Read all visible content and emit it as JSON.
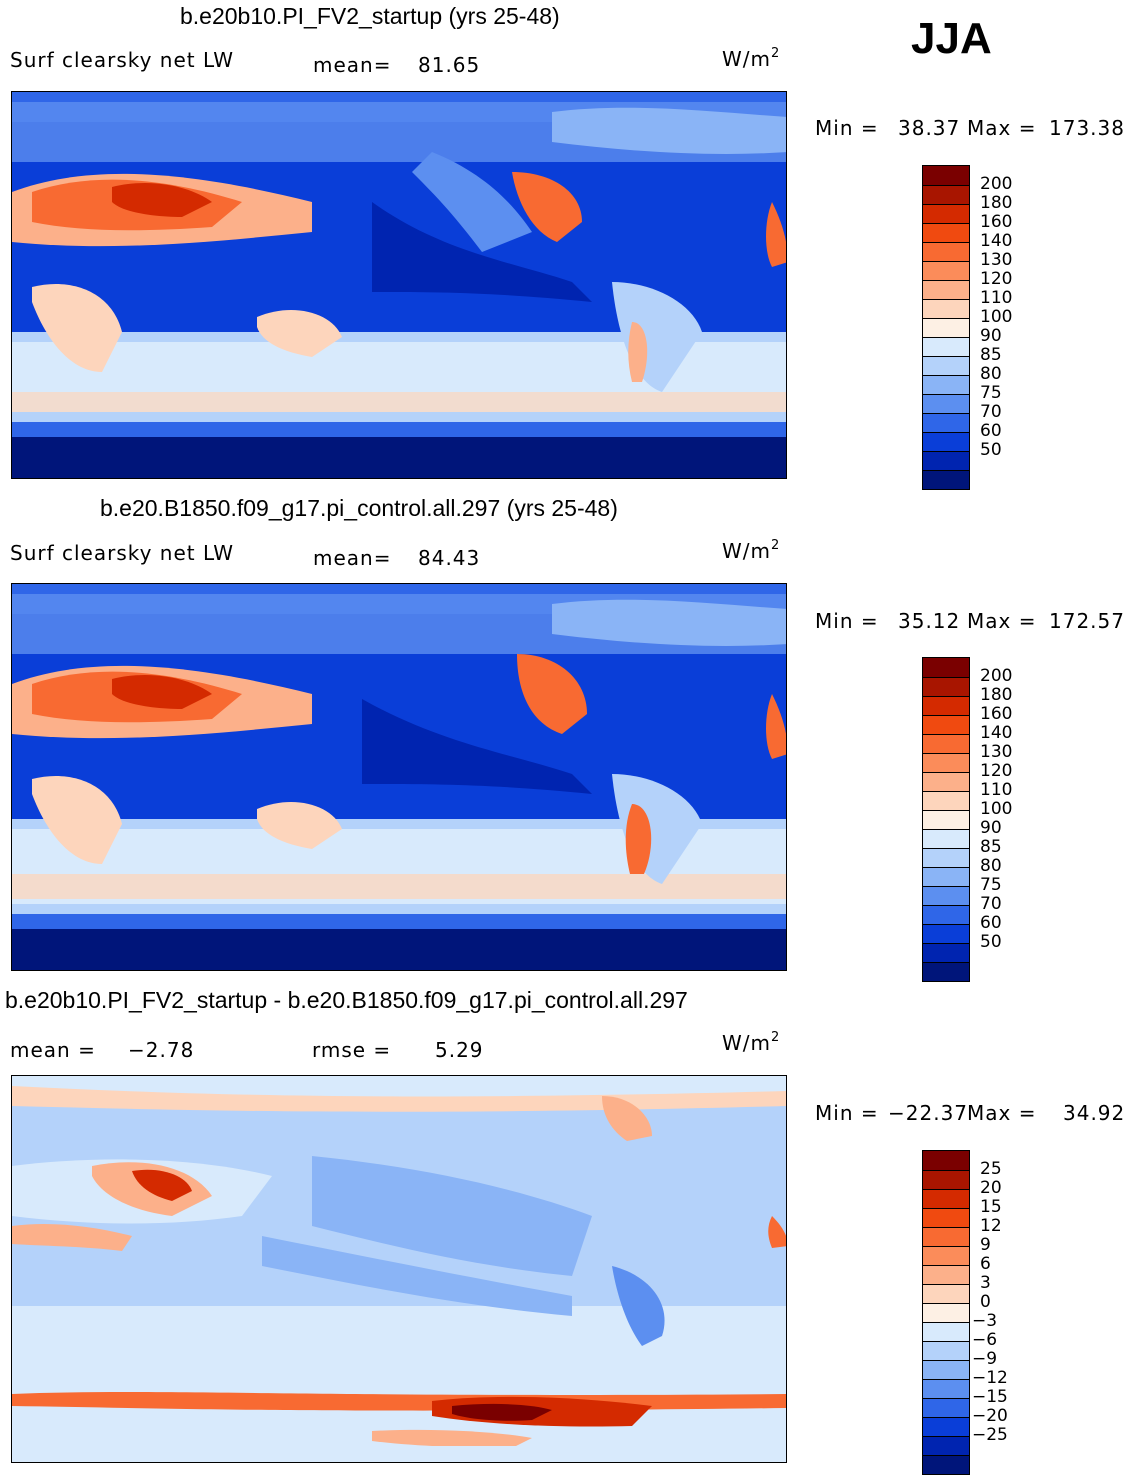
{
  "season": "JJA",
  "panels": [
    {
      "title": "b.e20b10.PI_FV2_startup (yrs 25-48)",
      "left_label": "Surf clearsky net LW",
      "stat1_label": "mean=",
      "stat1_value": "81.65",
      "stat2_label": "",
      "stat2_value": "",
      "units": "W/m",
      "units_exp": "2",
      "min_label": "Min =",
      "min_value": "38.37",
      "max_label": "Max =",
      "max_value": "173.38",
      "colorbar_labels": [
        "200",
        "180",
        "160",
        "140",
        "130",
        "120",
        "110",
        "100",
        "90",
        "85",
        "80",
        "75",
        "70",
        "60",
        "50"
      ],
      "field": "abs"
    },
    {
      "title": "b.e20.B1850.f09_g17.pi_control.all.297 (yrs 25-48)",
      "left_label": "Surf clearsky net LW",
      "stat1_label": "mean=",
      "stat1_value": "84.43",
      "stat2_label": "",
      "stat2_value": "",
      "units": "W/m",
      "units_exp": "2",
      "min_label": "Min =",
      "min_value": "35.12",
      "max_label": "Max =",
      "max_value": "172.57",
      "colorbar_labels": [
        "200",
        "180",
        "160",
        "140",
        "130",
        "120",
        "110",
        "100",
        "90",
        "85",
        "80",
        "75",
        "70",
        "60",
        "50"
      ],
      "field": "abs"
    },
    {
      "title": "b.e20b10.PI_FV2_startup - b.e20.B1850.f09_g17.pi_control.all.297",
      "left_label": "mean =",
      "stat1_label": "",
      "stat1_value": "−2.78",
      "stat2_label": "rmse =",
      "stat2_value": "5.29",
      "units": "W/m",
      "units_exp": "2",
      "min_label": "Min =",
      "min_value": "−22.37",
      "max_label": "Max =",
      "max_value": "34.92",
      "colorbar_labels": [
        "25",
        "20",
        "15",
        "12",
        "9",
        "6",
        "3",
        "0",
        "−3",
        "−6",
        "−9",
        "−12",
        "−15",
        "−20",
        "−25"
      ],
      "field": "diff"
    }
  ],
  "colorbar_colors": [
    "#7a0000",
    "#a81500",
    "#d42a00",
    "#f04a10",
    "#f86a32",
    "#fb8c5a",
    "#fcb08a",
    "#fdd5bc",
    "#fdf0e4",
    "#d8eafc",
    "#b4d2fa",
    "#8ab4f6",
    "#5c8ff0",
    "#2f66e8",
    "#0a3ed8",
    "#0024b0",
    "#00157a"
  ]
}
